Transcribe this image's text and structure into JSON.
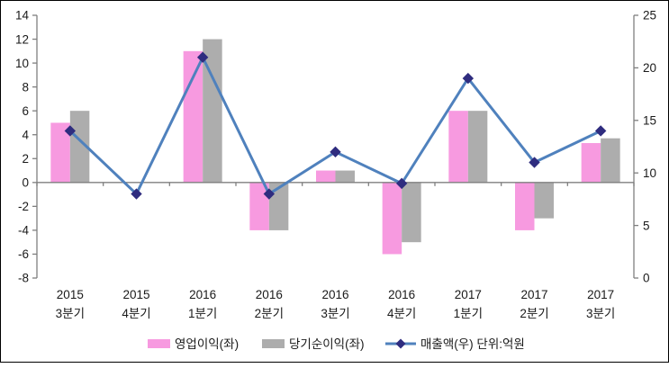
{
  "chart_data": {
    "type": "combo",
    "title": "",
    "categories": [
      {
        "line1": "2015",
        "line2": "3분기"
      },
      {
        "line1": "2015",
        "line2": "4분기"
      },
      {
        "line1": "2016",
        "line2": "1분기"
      },
      {
        "line1": "2016",
        "line2": "2분기"
      },
      {
        "line1": "2016",
        "line2": "3분기"
      },
      {
        "line1": "2016",
        "line2": "4분기"
      },
      {
        "line1": "2017",
        "line2": "1분기"
      },
      {
        "line1": "2017",
        "line2": "2분기"
      },
      {
        "line1": "2017",
        "line2": "3분기"
      }
    ],
    "series": [
      {
        "name": "영업이익(좌)",
        "type": "bar",
        "axis": "left",
        "color": "#F79AE0",
        "values": [
          5,
          0,
          11,
          -4,
          1,
          -6,
          6,
          -4,
          3.3
        ]
      },
      {
        "name": "당기순이익(좌)",
        "type": "bar",
        "axis": "left",
        "color": "#ADADAD",
        "values": [
          6,
          0,
          12,
          -4,
          1,
          -5,
          6,
          -3,
          3.7
        ]
      },
      {
        "name": "매출액(우) 단위:억원",
        "type": "line",
        "axis": "right",
        "color": "#4F81BD",
        "marker_color": "#2F2C7F",
        "values": [
          14,
          8,
          21,
          8,
          12,
          9,
          19,
          11,
          14
        ]
      }
    ],
    "left_axis": {
      "min": -8,
      "max": 14,
      "step": 2,
      "ticks": [
        14,
        12,
        10,
        8,
        6,
        4,
        2,
        0,
        -2,
        -4,
        -6,
        -8
      ]
    },
    "right_axis": {
      "min": 0,
      "max": 25,
      "step": 5,
      "ticks": [
        25,
        20,
        15,
        10,
        5,
        0
      ]
    },
    "grid": false,
    "legend_position": "bottom"
  },
  "colors": {
    "axis": "#7F7F7F",
    "text": "#1A1A1A",
    "background": "#FFFFFF",
    "border": "#000000"
  }
}
